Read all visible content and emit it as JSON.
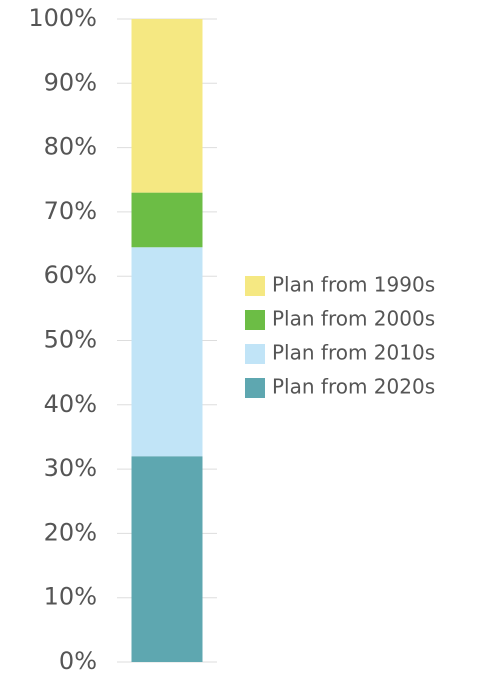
{
  "chart_data": {
    "type": "stacked-bar",
    "categories": [
      null
    ],
    "series": [
      {
        "name": "Plan from 2020s",
        "color": "#5ea7b0",
        "values": [
          32
        ]
      },
      {
        "name": "Plan from 2010s",
        "color": "#c1e4f7",
        "values": [
          32.5
        ]
      },
      {
        "name": "Plan from 2000s",
        "color": "#6cbd45",
        "values": [
          8.5
        ]
      },
      {
        "name": "Plan from 1990s",
        "color": "#f5e882",
        "values": [
          27
        ]
      }
    ],
    "ylim": [
      0,
      100
    ],
    "yticks": [
      {
        "value": 0,
        "label": "0%"
      },
      {
        "value": 10,
        "label": "10%"
      },
      {
        "value": 20,
        "label": "20%"
      },
      {
        "value": 30,
        "label": "30%"
      },
      {
        "value": 40,
        "label": "40%"
      },
      {
        "value": 50,
        "label": "50%"
      },
      {
        "value": 60,
        "label": "60%"
      },
      {
        "value": 70,
        "label": "70%"
      },
      {
        "value": 80,
        "label": "80%"
      },
      {
        "value": 90,
        "label": "90%"
      },
      {
        "value": 100,
        "label": "100%"
      }
    ],
    "grid": true,
    "legend": "right"
  }
}
